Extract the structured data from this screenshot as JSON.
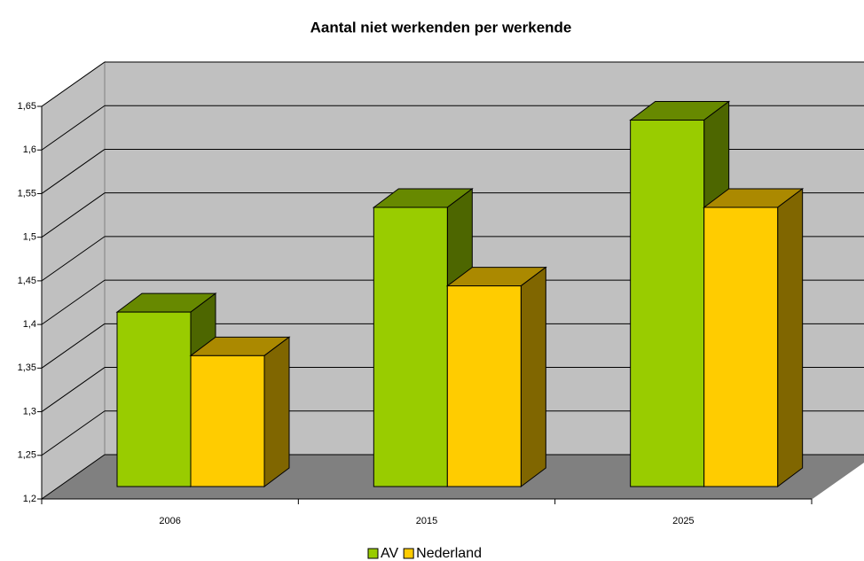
{
  "chart_data": {
    "type": "bar3d",
    "title": "Aantal niet werkenden per werkende",
    "categories": [
      "2006",
      "2015",
      "2025"
    ],
    "series": [
      {
        "name": "AV",
        "color": "#99cc00",
        "values": [
          1.4,
          1.52,
          1.62
        ]
      },
      {
        "name": "Nederland",
        "color": "#ffcc00",
        "values": [
          1.35,
          1.43,
          1.52
        ]
      }
    ],
    "ylim": [
      1.2,
      1.65
    ],
    "yticks": [
      {
        "value": 1.2,
        "label": "1,2"
      },
      {
        "value": 1.25,
        "label": "1,25"
      },
      {
        "value": 1.3,
        "label": "1,3"
      },
      {
        "value": 1.35,
        "label": "1,35"
      },
      {
        "value": 1.4,
        "label": "1,4"
      },
      {
        "value": 1.45,
        "label": "1,45"
      },
      {
        "value": 1.5,
        "label": "1,5"
      },
      {
        "value": 1.55,
        "label": "1,55"
      },
      {
        "value": 1.6,
        "label": "1,6"
      },
      {
        "value": 1.65,
        "label": "1,65"
      }
    ],
    "grid": true,
    "legend": "bottom"
  }
}
